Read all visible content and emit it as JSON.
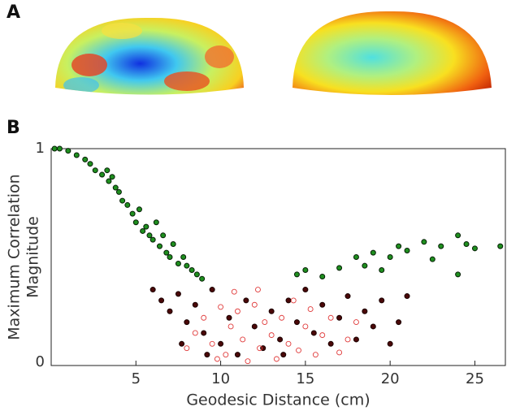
{
  "panels": [
    "A",
    "B"
  ],
  "chart_data": {
    "type": "scatter",
    "xlabel": "Geodesic Distance (cm)",
    "ylabel": [
      "Maximum Correlation",
      "Magnitude"
    ],
    "xlim": [
      0,
      26.8
    ],
    "ylim": [
      0,
      1
    ],
    "xticks": [
      5,
      10,
      15,
      20,
      25
    ],
    "yticks": [
      0,
      1
    ],
    "series": [
      {
        "color": "#1f8f1f",
        "edgecolor": "#061f06",
        "filled": true,
        "x": [
          0.2,
          0.5,
          1,
          1.5,
          2,
          2.3,
          2.6,
          3,
          3.3,
          3.4,
          3.6,
          3.8,
          4,
          4.2,
          4.5,
          4.8,
          5,
          5.2,
          5.4,
          5.6,
          5.8,
          6,
          6.2,
          6.4,
          6.6,
          6.8,
          7,
          7.2,
          7.5,
          7.8,
          8,
          8.3,
          8.6,
          8.9,
          14.5,
          15,
          16,
          17,
          18,
          18.5,
          19,
          20,
          20.5,
          21,
          22,
          23,
          24,
          24.5,
          25,
          26.5,
          19.5,
          22.5,
          24
        ],
        "values": [
          1.0,
          1.0,
          0.99,
          0.97,
          0.95,
          0.93,
          0.9,
          0.88,
          0.9,
          0.85,
          0.87,
          0.82,
          0.8,
          0.76,
          0.74,
          0.7,
          0.66,
          0.72,
          0.62,
          0.64,
          0.6,
          0.58,
          0.66,
          0.55,
          0.6,
          0.52,
          0.5,
          0.56,
          0.47,
          0.5,
          0.46,
          0.44,
          0.42,
          0.4,
          0.42,
          0.44,
          0.41,
          0.45,
          0.5,
          0.46,
          0.52,
          0.5,
          0.55,
          0.53,
          0.57,
          0.55,
          0.6,
          0.56,
          0.54,
          0.55,
          0.44,
          0.49,
          0.42
        ]
      },
      {
        "color": "#4a0808",
        "edgecolor": "#1a0000",
        "filled": true,
        "x": [
          6,
          6.5,
          7,
          7.5,
          8,
          8.5,
          9,
          9.5,
          10,
          10.5,
          11,
          11.5,
          12,
          12.5,
          13,
          13.5,
          14,
          14.5,
          15,
          15.5,
          16,
          16.5,
          17,
          17.5,
          18,
          18.5,
          19,
          19.5,
          20,
          20.5,
          21,
          13.7,
          9.2,
          7.7
        ],
        "values": [
          0.35,
          0.3,
          0.25,
          0.33,
          0.2,
          0.28,
          0.15,
          0.35,
          0.1,
          0.22,
          0.05,
          0.3,
          0.18,
          0.08,
          0.25,
          0.12,
          0.3,
          0.2,
          0.35,
          0.15,
          0.28,
          0.1,
          0.22,
          0.32,
          0.12,
          0.25,
          0.18,
          0.3,
          0.1,
          0.2,
          0.32,
          0.05,
          0.05,
          0.1
        ]
      },
      {
        "color": "#e03a3a",
        "edgecolor": "#e03a3a",
        "filled": false,
        "x": [
          8,
          8.5,
          9,
          9.5,
          10,
          10.3,
          10.6,
          11,
          11.3,
          11.6,
          12,
          12.3,
          12.6,
          13,
          13.3,
          13.6,
          14,
          14.3,
          14.6,
          15,
          15.3,
          15.6,
          16,
          16.5,
          17,
          17.5,
          18,
          10.8,
          12.2,
          9.8
        ],
        "values": [
          0.08,
          0.15,
          0.22,
          0.1,
          0.27,
          0.05,
          0.18,
          0.25,
          0.12,
          0.02,
          0.28,
          0.08,
          0.2,
          0.14,
          0.03,
          0.22,
          0.1,
          0.3,
          0.07,
          0.18,
          0.26,
          0.05,
          0.14,
          0.22,
          0.06,
          0.12,
          0.2,
          0.34,
          0.35,
          0.03
        ]
      }
    ]
  }
}
